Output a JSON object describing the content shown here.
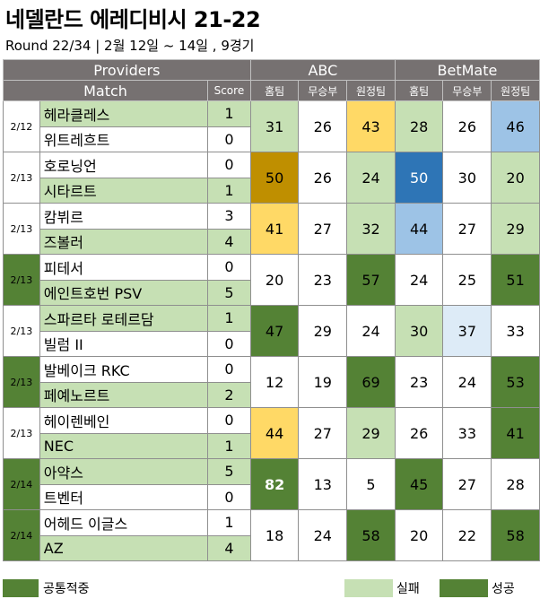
{
  "title": "네델란드 에레디비시 21-22",
  "subtitle": "Round 22/34 | 2월 12일 ~ 14일 , 9경기",
  "header": {
    "providers": "Providers",
    "abc": "ABC",
    "betmate": "BetMate",
    "match": "Match",
    "score": "Score",
    "home": "홈팀",
    "draw": "무승부",
    "away": "원정팀"
  },
  "matches": [
    {
      "date": "2/12",
      "home": "헤라클레스",
      "away": "위트레흐트",
      "hs": "1",
      "as": "0",
      "abc": [
        "31",
        "26",
        "43"
      ],
      "bm": [
        "28",
        "26",
        "46"
      ]
    },
    {
      "date": "2/13",
      "home": "호로닝언",
      "away": "시타르트",
      "hs": "0",
      "as": "1",
      "abc": [
        "50",
        "26",
        "24"
      ],
      "bm": [
        "50",
        "30",
        "20"
      ]
    },
    {
      "date": "2/13",
      "home": "캄뷔르",
      "away": "즈볼러",
      "hs": "3",
      "as": "4",
      "abc": [
        "41",
        "27",
        "32"
      ],
      "bm": [
        "44",
        "27",
        "29"
      ]
    },
    {
      "date": "2/13",
      "home": "피테서",
      "away": "에인트호번 PSV",
      "hs": "0",
      "as": "5",
      "abc": [
        "20",
        "23",
        "57"
      ],
      "bm": [
        "24",
        "25",
        "51"
      ]
    },
    {
      "date": "2/13",
      "home": "스파르타 로테르담",
      "away": "빌럼 II",
      "hs": "1",
      "as": "0",
      "abc": [
        "47",
        "29",
        "24"
      ],
      "bm": [
        "30",
        "37",
        "33"
      ]
    },
    {
      "date": "2/13",
      "home": "발베이크 RKC",
      "away": "페예노르트",
      "hs": "0",
      "as": "2",
      "abc": [
        "12",
        "19",
        "69"
      ],
      "bm": [
        "23",
        "24",
        "53"
      ]
    },
    {
      "date": "2/13",
      "home": "헤이렌베인",
      "away": "NEC",
      "hs": "0",
      "as": "1",
      "abc": [
        "44",
        "27",
        "29"
      ],
      "bm": [
        "26",
        "33",
        "41"
      ]
    },
    {
      "date": "2/14",
      "home": "아약스",
      "away": "트벤터",
      "hs": "5",
      "as": "0",
      "abc": [
        "82",
        "13",
        "5"
      ],
      "bm": [
        "45",
        "27",
        "28"
      ]
    },
    {
      "date": "2/14",
      "home": "어헤드 이글스",
      "away": "AZ",
      "hs": "1",
      "as": "4",
      "abc": [
        "18",
        "24",
        "58"
      ],
      "bm": [
        "20",
        "22",
        "58"
      ]
    }
  ],
  "legend": {
    "common": "공통적중",
    "fail": "실패",
    "success": "성공"
  },
  "colors": {
    "header_bg": "#767171",
    "light_green": "#c6e0b4",
    "dark_green": "#548235",
    "yellow": "#ffd966",
    "gold": "#bf8f00",
    "blue": "#2e75b6",
    "light_blue": "#9dc3e6",
    "very_light_blue": "#ddebf7"
  }
}
